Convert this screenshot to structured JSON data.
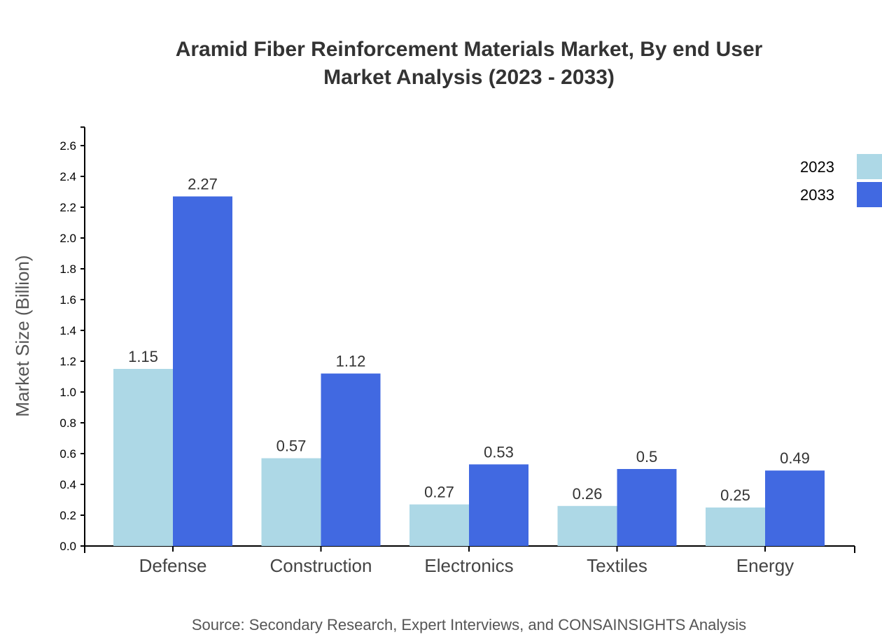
{
  "chart_data": {
    "type": "bar",
    "title_lines": [
      "Aramid Fiber Reinforcement Materials Market, By end User",
      "Market Analysis (2023 - 2033)"
    ],
    "ylabel": "Market Size (Billion)",
    "xlabel": "",
    "categories": [
      "Defense",
      "Construction",
      "Electronics",
      "Textiles",
      "Energy"
    ],
    "series": [
      {
        "name": "2023",
        "color": "#ADD8E6",
        "values": [
          1.15,
          0.57,
          0.27,
          0.26,
          0.25
        ]
      },
      {
        "name": "2033",
        "color": "#4169E1",
        "values": [
          2.27,
          1.12,
          0.53,
          0.5,
          0.49
        ]
      }
    ],
    "ylim": [
      0,
      2.72
    ],
    "yticks": [
      "0.0",
      "0.2",
      "0.4",
      "0.6",
      "0.8",
      "1.0",
      "1.2",
      "1.4",
      "1.6",
      "1.8",
      "2.0",
      "2.2",
      "2.4",
      "2.6"
    ],
    "grid": false,
    "legend_position": "top-right",
    "source": "Source: Secondary Research, Expert Interviews, and CONSAINSIGHTS Analysis"
  }
}
